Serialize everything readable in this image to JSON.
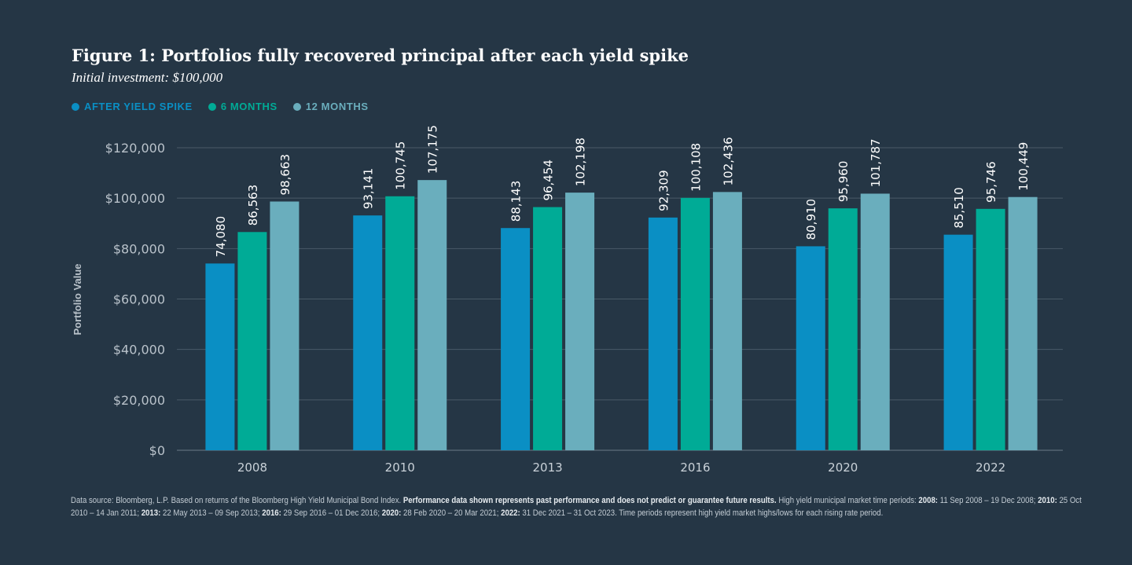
{
  "title": "Figure 1: Portfolios fully recovered principal after each yield spike",
  "subtitle": "Initial investment: $100,000",
  "colors": {
    "background": "#253645",
    "after_yield_spike": "#0a8fc4",
    "six_months": "#00ab96",
    "twelve_months": "#6aaebd",
    "grid": "#4a5a68"
  },
  "chart_data": {
    "type": "bar",
    "title": "Figure 1: Portfolios fully recovered principal after each yield spike",
    "xlabel": "",
    "ylabel": "Portfolio Value",
    "ylim": [
      0,
      120000
    ],
    "yticks": [
      "$0",
      "$20,000",
      "$40,000",
      "$60,000",
      "$80,000",
      "$100,000",
      "$120,000"
    ],
    "ytick_values": [
      0,
      20000,
      40000,
      60000,
      80000,
      100000,
      120000
    ],
    "grid": true,
    "legend_position": "top-left",
    "categories": [
      "2008",
      "2010",
      "2013",
      "2016",
      "2020",
      "2022"
    ],
    "series": [
      {
        "name": "AFTER YIELD SPIKE",
        "color": "#0a8fc4",
        "values": [
          74080,
          93141,
          88143,
          92309,
          80910,
          85510
        ],
        "labels": [
          "74,080",
          "93,141",
          "88,143",
          "92,309",
          "80,910",
          "85,510"
        ]
      },
      {
        "name": "6 MONTHS",
        "color": "#00ab96",
        "values": [
          86563,
          100745,
          96454,
          100108,
          95960,
          95746
        ],
        "labels": [
          "86,563",
          "100,745",
          "96,454",
          "100,108",
          "95,960",
          "95,746"
        ]
      },
      {
        "name": "12 MONTHS",
        "color": "#6aaebd",
        "values": [
          98663,
          107175,
          102198,
          102436,
          101787,
          100449
        ],
        "labels": [
          "98,663",
          "107,175",
          "102,198",
          "102,436",
          "101,787",
          "100,449"
        ]
      }
    ]
  },
  "footnote": {
    "p1": "Data source: Bloomberg, L.P. Based on returns of the Bloomberg High Yield Municipal Bond Index. ",
    "p2": "Performance data shown represents past performance and does not predict or guarantee future results.",
    "p3": " High yield municipal market time periods: ",
    "y2008": "2008:",
    "d2008": " 11 Sep 2008 – 19 Dec 2008; ",
    "y2010": "2010:",
    "d2010": " 25 Oct 2010 – 14 Jan 2011; ",
    "y2013": "2013:",
    "d2013": " 22 May 2013 – 09 Sep 2013; ",
    "y2016": "2016:",
    "d2016": " 29 Sep 2016 – 01 Dec 2016; ",
    "y2020": "2020:",
    "d2020": " 28 Feb 2020 – 20 Mar 2021; ",
    "y2022": "2022:",
    "d2022": " 31 Dec 2021 – 31 Oct 2023. Time periods represent high yield market highs/lows for each rising rate period."
  }
}
